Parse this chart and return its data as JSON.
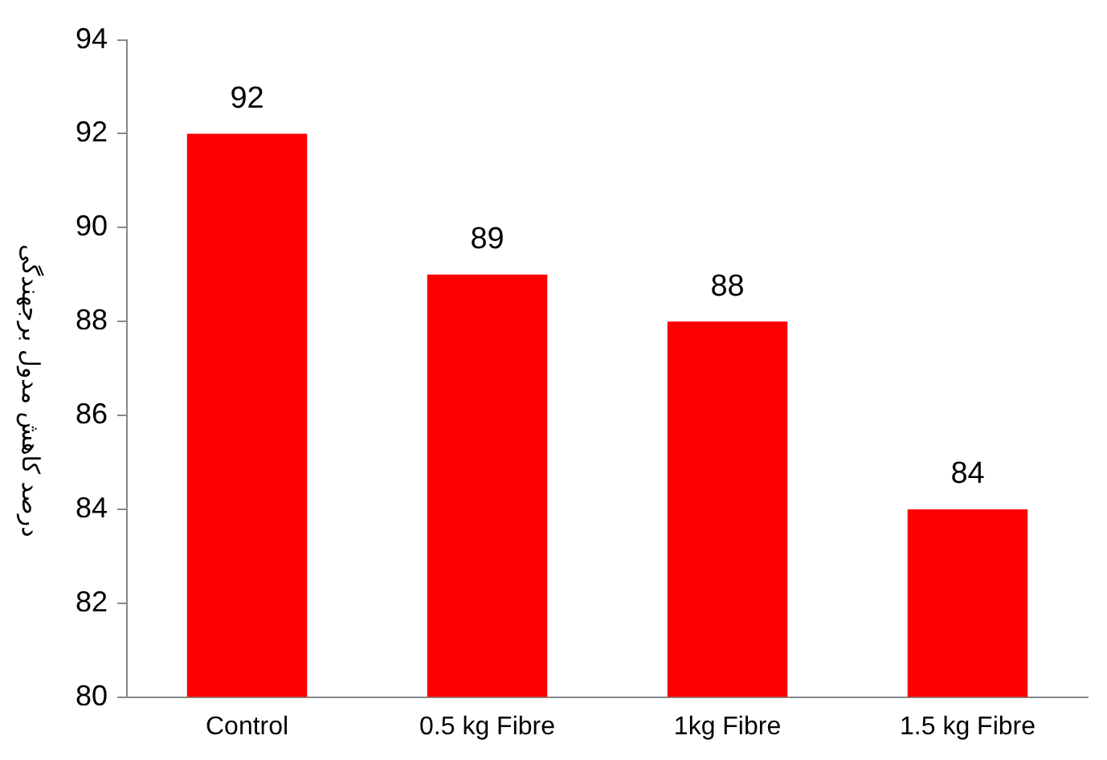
{
  "chart_data": {
    "type": "bar",
    "ylabel": "درصد کاهش مدول برجهندگی",
    "categories": [
      "Control",
      "0.5 kg Fibre",
      "1kg Fibre",
      "1.5 kg Fibre"
    ],
    "values": [
      92,
      89,
      88,
      84
    ],
    "color": "#ff0000",
    "ylim": [
      80,
      94
    ],
    "yticks": [
      80,
      82,
      84,
      86,
      88,
      90,
      92,
      94
    ],
    "data_labels": true,
    "grid": false,
    "legend": false
  }
}
